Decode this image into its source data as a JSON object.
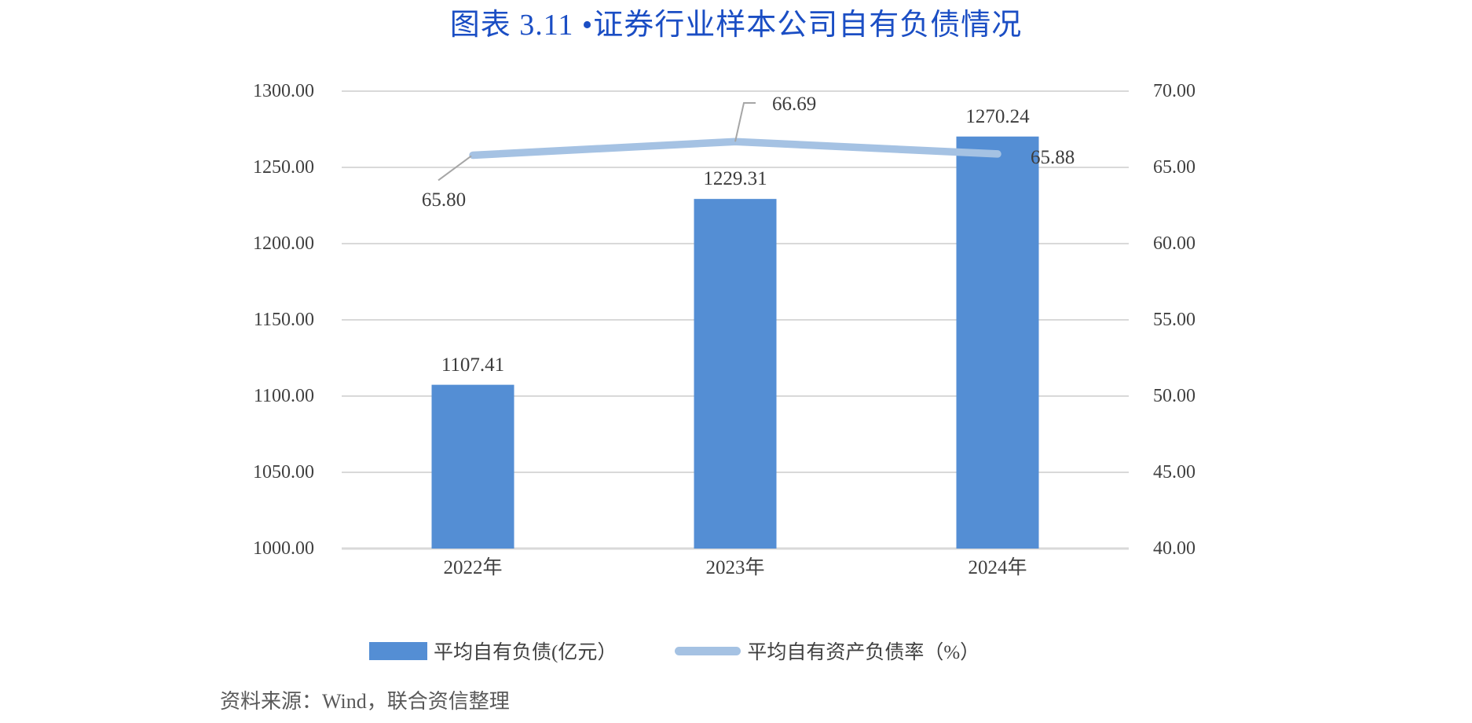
{
  "title": "图表 3.11 •证券行业样本公司自有负债情况",
  "source_note": "资料来源：Wind，联合资信整理",
  "legend": {
    "bar_label": "平均自有负债(亿元）",
    "line_label": "平均自有资产负债率（%）"
  },
  "colors": {
    "bar": "#548ED4",
    "line": "#A5C2E3",
    "title": "#1B4EC4",
    "grid": "#D9D9D9",
    "leader": "#A6A6A6",
    "tick_text": "#404040",
    "source_text": "#595959"
  },
  "chart_data": {
    "type": "bar",
    "subtype": "combo-bar-line-dual-axis",
    "title": "图表 3.11 •证券行业样本公司自有负债情况",
    "categories": [
      "2022年",
      "2023年",
      "2024年"
    ],
    "series": [
      {
        "name": "平均自有负债(亿元）",
        "chart_type": "bar",
        "axis": "left",
        "values": [
          1107.41,
          1229.31,
          1270.24
        ],
        "data_labels": [
          "1107.41",
          "1229.31",
          "1270.24"
        ]
      },
      {
        "name": "平均自有资产负债率（%）",
        "chart_type": "line",
        "axis": "right",
        "values": [
          65.8,
          66.69,
          65.88
        ],
        "data_labels": [
          "65.80",
          "66.69",
          "65.88"
        ],
        "label_positions": [
          "below-left-leader",
          "above-bent-leader",
          "right"
        ]
      }
    ],
    "left_axis": {
      "min": 1000,
      "max": 1300,
      "step": 50,
      "tick_labels": [
        "1000.00",
        "1050.00",
        "1100.00",
        "1150.00",
        "1200.00",
        "1250.00",
        "1300.00"
      ]
    },
    "right_axis": {
      "min": 40,
      "max": 70,
      "step": 5,
      "tick_labels": [
        "40.00",
        "45.00",
        "50.00",
        "55.00",
        "60.00",
        "65.00",
        "70.00"
      ]
    },
    "grid": "horizontal",
    "legend_position": "bottom"
  }
}
